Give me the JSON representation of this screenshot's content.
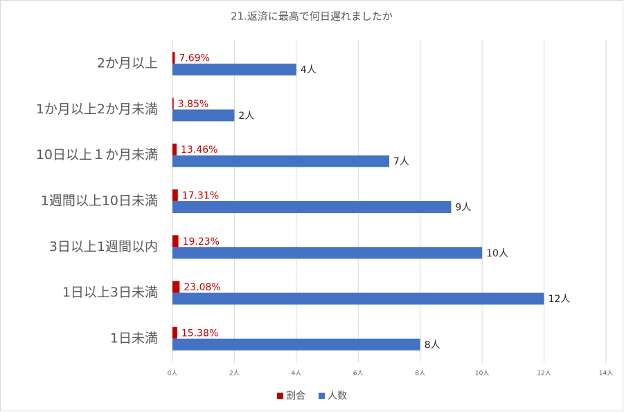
{
  "chart_data": {
    "type": "bar",
    "orientation": "horizontal",
    "title": "21.返済に最高で何日遅れましたか",
    "categories": [
      "2か月以上",
      "1か月以上2か月未満",
      "10日以上１か月未満",
      "1週間以上10日未満",
      "3日以上1週間以内",
      "1日以上3日未満",
      "1日未満"
    ],
    "series": [
      {
        "name": "割合",
        "color": "#c00000",
        "values": [
          0.0769,
          0.0385,
          0.1346,
          0.1731,
          0.1923,
          0.2308,
          0.1538
        ],
        "value_labels": [
          "7.69%",
          "3.85%",
          "13.46%",
          "17.31%",
          "19.23%",
          "23.08%",
          "15.38%"
        ]
      },
      {
        "name": "人数",
        "color": "#4472c4",
        "values": [
          4,
          2,
          7,
          9,
          10,
          12,
          8
        ],
        "value_labels": [
          "4人",
          "2人",
          "7人",
          "9人",
          "10人",
          "12人",
          "8人"
        ]
      }
    ],
    "xlim": [
      0,
      14
    ],
    "xticks": [
      {
        "value": 0,
        "label": "0人"
      },
      {
        "value": 2,
        "label": "2人"
      },
      {
        "value": 4,
        "label": "4人"
      },
      {
        "value": 6,
        "label": "6人"
      },
      {
        "value": 8,
        "label": "8人"
      },
      {
        "value": 10,
        "label": "10人"
      },
      {
        "value": 12,
        "label": "12人"
      },
      {
        "value": 14,
        "label": "14人"
      }
    ],
    "grid": true,
    "legend": "bottom"
  }
}
